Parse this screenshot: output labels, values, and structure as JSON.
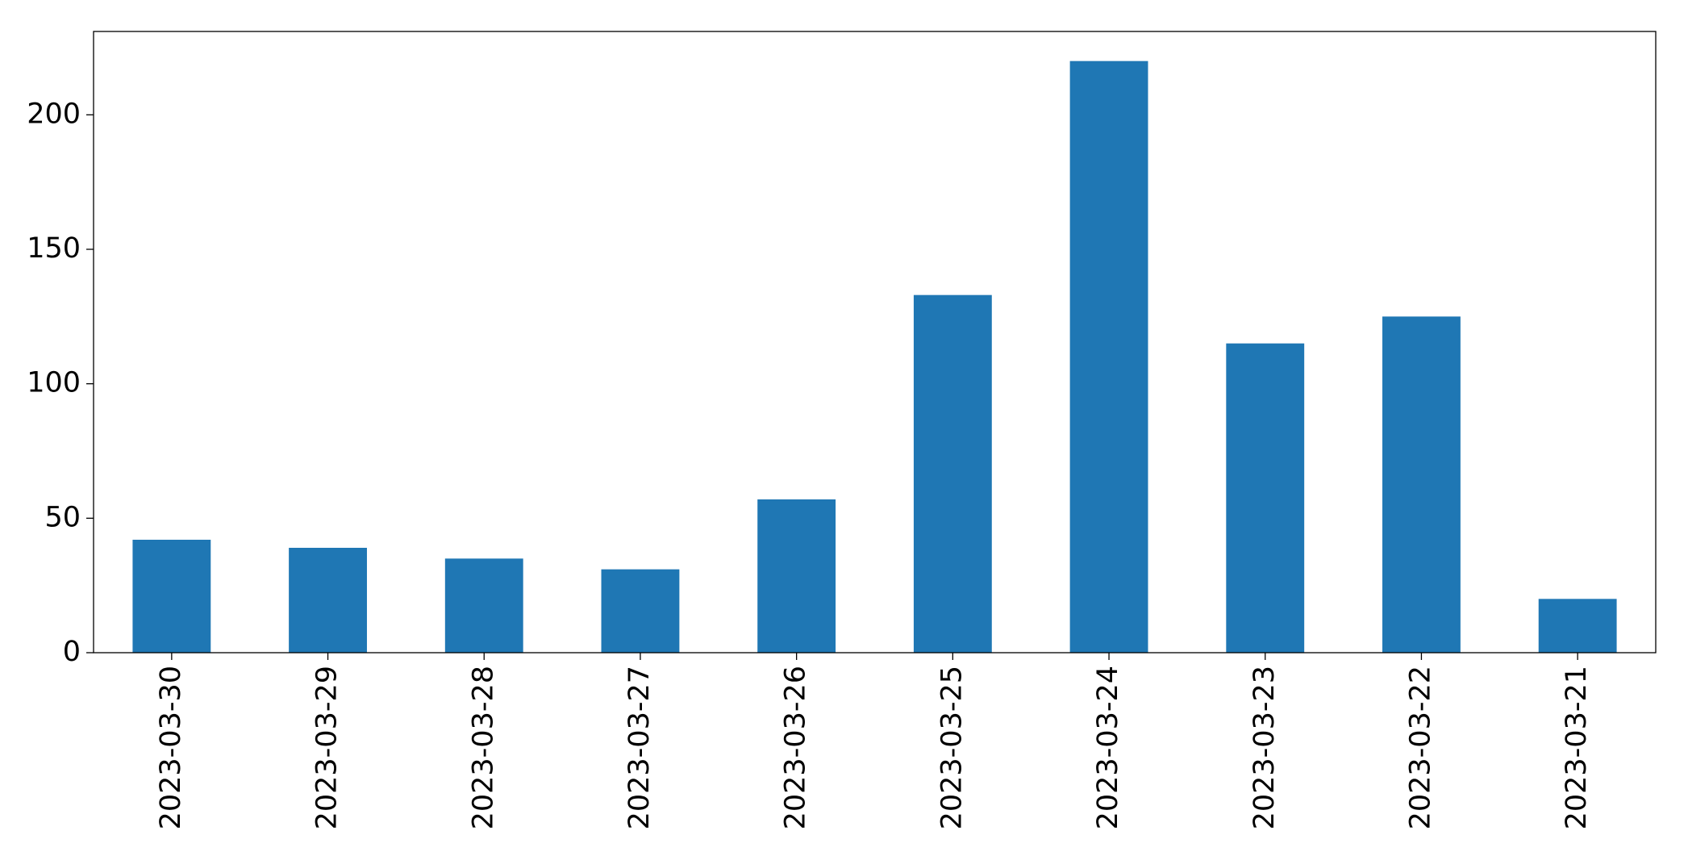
{
  "chart_data": {
    "type": "bar",
    "categories": [
      "2023-03-30",
      "2023-03-29",
      "2023-03-28",
      "2023-03-27",
      "2023-03-26",
      "2023-03-25",
      "2023-03-24",
      "2023-03-23",
      "2023-03-22",
      "2023-03-21"
    ],
    "values": [
      42,
      39,
      35,
      31,
      57,
      133,
      220,
      115,
      125,
      20
    ],
    "color": "#1f77b4",
    "ylim": [
      0,
      231
    ],
    "yticks": [
      0,
      50,
      100,
      150,
      200
    ],
    "grid": false
  }
}
